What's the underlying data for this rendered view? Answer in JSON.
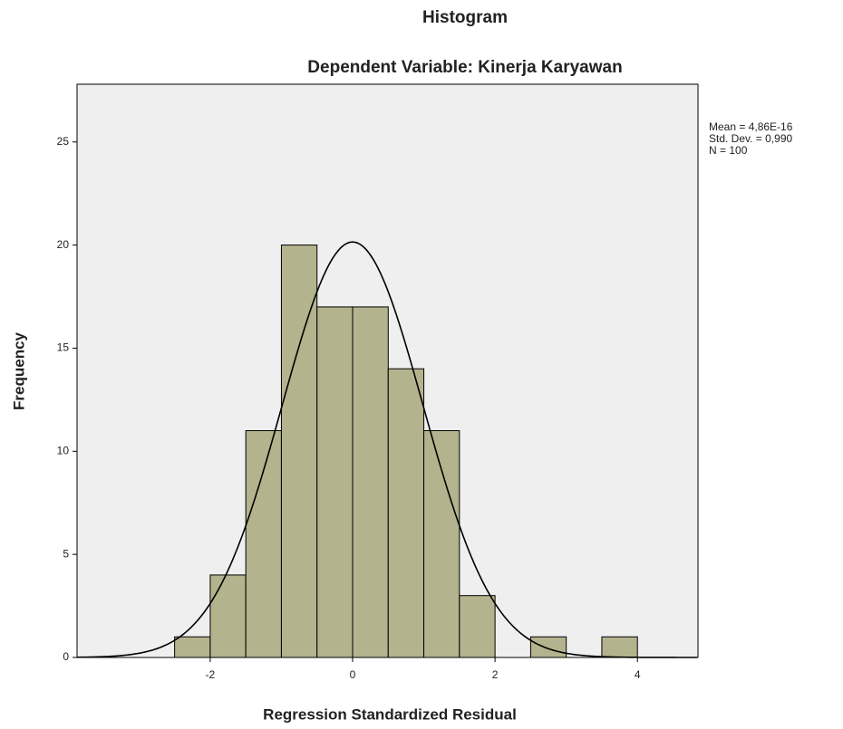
{
  "chart_data": {
    "type": "histogram",
    "title": "Histogram",
    "subtitle": "Dependent Variable: Kinerja Karyawan",
    "x_label": "Regression Standardized Residual",
    "y_label": "Frequency",
    "bins": [
      -2.5,
      -2,
      -1.5,
      -1,
      -0.5,
      0,
      0.5,
      1,
      1.5,
      2,
      2.5,
      3,
      3.5,
      4
    ],
    "values": [
      1,
      4,
      11,
      20,
      17,
      17,
      14,
      11,
      3,
      0,
      1,
      0,
      1
    ],
    "color": "#b3b38e",
    "curve_color": "#000000",
    "xlim": [
      -3.87,
      4.85
    ],
    "ylim": [
      0,
      27.8
    ],
    "xticks": [
      -2,
      0,
      2,
      4
    ],
    "yticks": [
      0,
      5,
      10,
      15,
      20,
      25
    ],
    "stats": [
      {
        "label": "Mean = 4,86E-16",
        "value": 4.86e-16
      },
      {
        "label": "Std. Dev. = 0,990",
        "value": 0.99
      },
      {
        "label": "N = 100",
        "value": 100
      }
    ]
  }
}
